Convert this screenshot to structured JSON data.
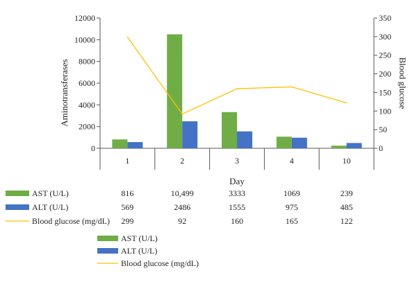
{
  "chart_data": {
    "type": "bar",
    "categories": [
      "1",
      "2",
      "3",
      "4",
      "10"
    ],
    "xlabel": "Day",
    "ylabel": "Aminotransferases",
    "y2label": "Blood glucose",
    "ylim": [
      0,
      12000
    ],
    "yticks": [
      "0",
      "2000",
      "4000",
      "6000",
      "8000",
      "10000",
      "12000"
    ],
    "y2lim": [
      0,
      350
    ],
    "y2ticks": [
      "0",
      "50",
      "100",
      "150",
      "200",
      "250",
      "300",
      "350"
    ],
    "series": [
      {
        "name": "AST (U/L)",
        "type": "bar",
        "axis": "left",
        "color": "#70ad47",
        "values": [
          816,
          10499,
          3333,
          1069,
          239
        ],
        "labels": [
          "816",
          "10,499",
          "3333",
          "1069",
          "239"
        ]
      },
      {
        "name": "ALT (U/L)",
        "type": "bar",
        "axis": "left",
        "color": "#4472c4",
        "values": [
          569,
          2486,
          1555,
          975,
          485
        ],
        "labels": [
          "569",
          "2486",
          "1555",
          "975",
          "485"
        ]
      },
      {
        "name": "Blood glucose (mg/dL)",
        "type": "line",
        "axis": "right",
        "color": "#ffc000",
        "values": [
          299,
          92,
          160,
          165,
          122
        ],
        "labels": [
          "299",
          "92",
          "160",
          "165",
          "122"
        ]
      }
    ],
    "grid": false,
    "legend": "bottom",
    "data_table": true
  }
}
